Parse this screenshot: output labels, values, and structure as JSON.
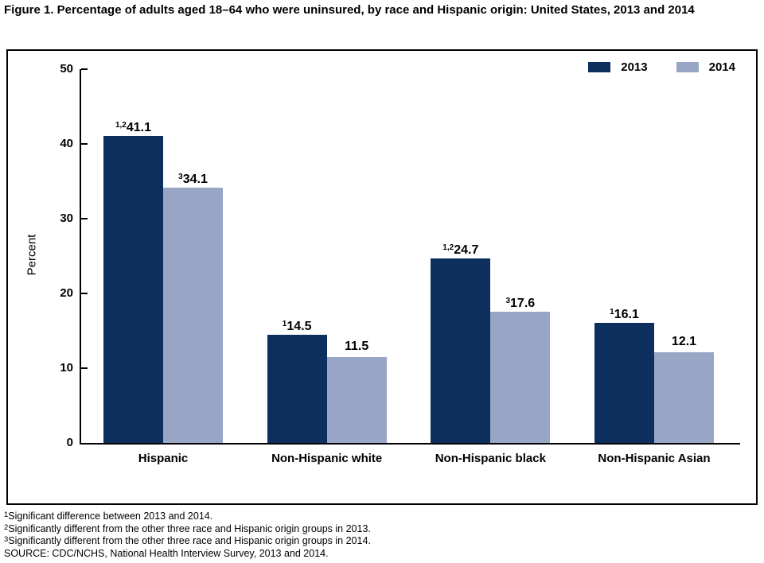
{
  "figure_title": "Figure 1. Percentage of adults aged 18–64 who were uninsured, by race and Hispanic origin: United States, 2013 and 2014",
  "chart_data": {
    "type": "bar",
    "title": "Figure 1. Percentage of adults aged 18–64 who were uninsured, by race and Hispanic origin: United States, 2013 and 2014",
    "categories": [
      "Hispanic",
      "Non-Hispanic white",
      "Non-Hispanic black",
      "Non-Hispanic Asian"
    ],
    "series": [
      {
        "name": "2013",
        "color": "#0d2f5e",
        "values": [
          41.1,
          14.5,
          24.7,
          16.1
        ],
        "label_sups": [
          "1,2",
          "1",
          "1,2",
          "1"
        ]
      },
      {
        "name": "2014",
        "color": "#98a5c5",
        "values": [
          34.1,
          11.5,
          17.6,
          12.1
        ],
        "label_sups": [
          "3",
          "",
          "3",
          ""
        ]
      }
    ],
    "xlabel": "",
    "ylabel": "Percent",
    "ylim": [
      0,
      50
    ],
    "yticks": [
      0,
      10,
      20,
      30,
      40,
      50
    ],
    "grid": false,
    "legend_position": "top-right"
  },
  "footnotes": [
    {
      "sup": "1",
      "text": "Significant difference between 2013 and 2014."
    },
    {
      "sup": "2",
      "text": "Significantly different from the other three race and Hispanic origin groups in 2013."
    },
    {
      "sup": "3",
      "text": "Significantly different from the other three race and Hispanic origin groups in 2014."
    },
    {
      "sup": "",
      "text": "SOURCE: CDC/NCHS, National Health Interview Survey, 2013 and 2014."
    }
  ]
}
